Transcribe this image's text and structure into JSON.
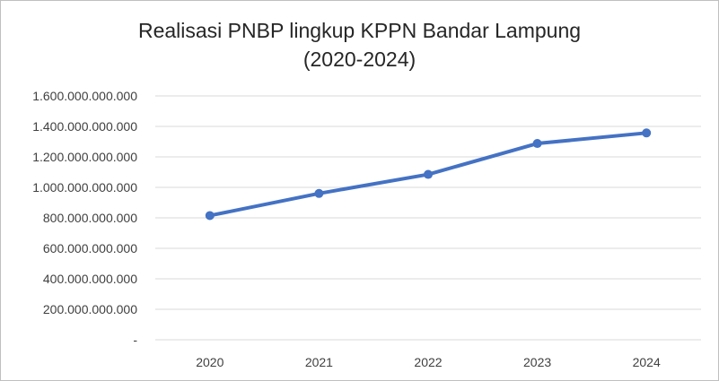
{
  "chart_data": {
    "type": "line",
    "title_lines": [
      "Realisasi PNBP lingkup KPPN Bandar Lampung",
      "(2020-2024)"
    ],
    "categories": [
      "2020",
      "2021",
      "2022",
      "2023",
      "2024"
    ],
    "series": [
      {
        "values": [
          815000000000,
          960000000000,
          1085000000000,
          1288000000000,
          1357000000000
        ],
        "color": "#4472c4"
      }
    ],
    "ylim": [
      0,
      1600000000000
    ],
    "yticks": [
      0,
      200000000000,
      400000000000,
      600000000000,
      800000000000,
      1000000000000,
      1200000000000,
      1400000000000,
      1600000000000
    ],
    "ytick_labels": [
      "-",
      "200.000.000.000",
      "400.000.000.000",
      "600.000.000.000",
      "800.000.000.000",
      "1.000.000.000.000",
      "1.200.000.000.000",
      "1.400.000.000.000",
      "1.600.000.000.000"
    ],
    "grid": true,
    "gridline_color": "#d9d9d9",
    "legend": "none"
  }
}
